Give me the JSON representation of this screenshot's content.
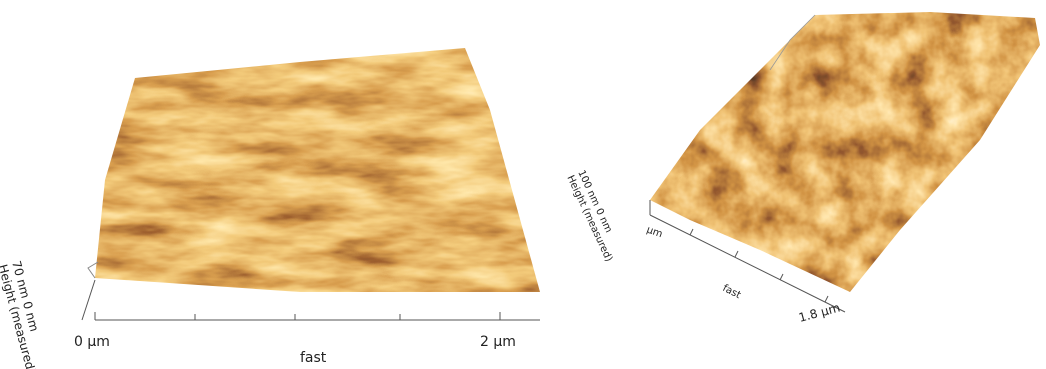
{
  "left_panel": {
    "height_max": "70 nm",
    "height_min": "0 nm",
    "height_label": "Height (measured)",
    "x_start": "0 µm",
    "x_end": "2 µm",
    "axis_label": "fast"
  },
  "right_panel": {
    "height_max": "100 nm",
    "height_min": "0 nm",
    "height_label": "Height (measured)",
    "y_unit": "µm",
    "axis_label": "fast",
    "x_end": "1.8 µm"
  }
}
